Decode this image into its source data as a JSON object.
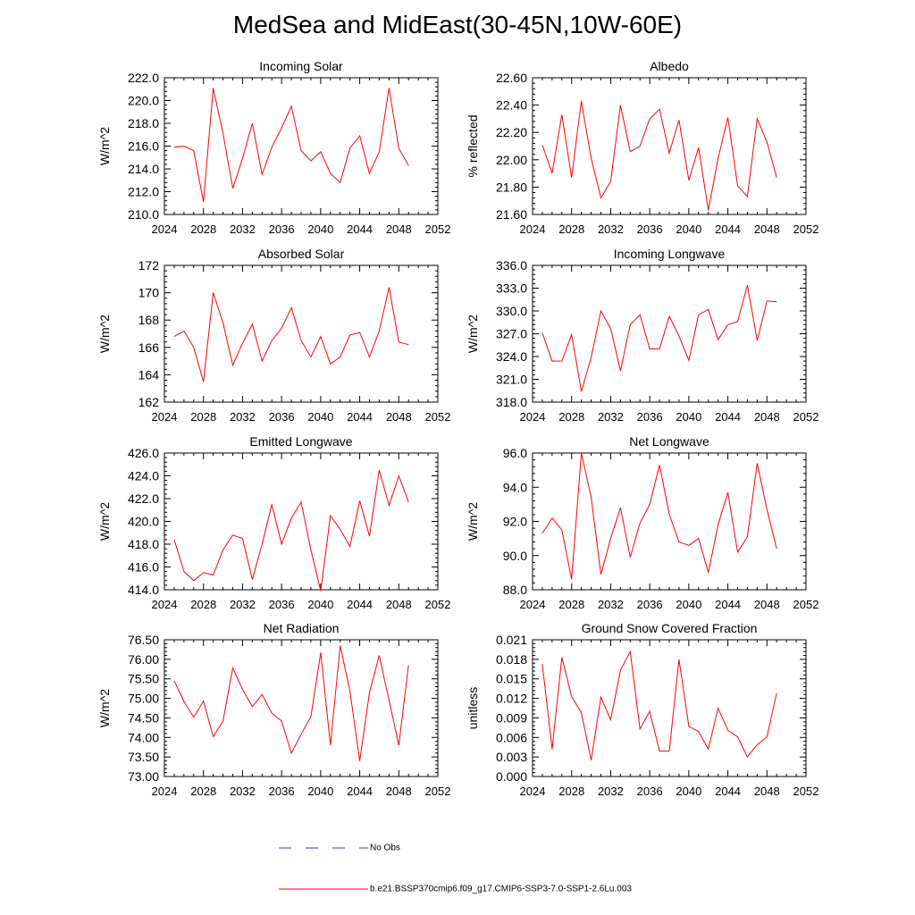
{
  "figure": {
    "title": "MedSea and MidEast(30-45N,10W-60E)"
  },
  "legend": {
    "obs_label": "No Obs",
    "obs_color": "#3333cc",
    "model_label": "b.e21.BSSP370cmip6.f09_g17.CMIP6-SSP3-7.0-SSP1-2.6Lu.003",
    "model_color": "#ff0000"
  },
  "chart_data": [
    {
      "type": "line",
      "title": "Incoming Solar",
      "ylabel": "W/m^2",
      "xlim": [
        2024,
        2052
      ],
      "xticks": [
        "2024",
        "2028",
        "2032",
        "2036",
        "2040",
        "2044",
        "2048",
        "2052"
      ],
      "ylim": [
        210,
        222
      ],
      "yticks": [
        "210.0",
        "212.0",
        "214.0",
        "216.0",
        "218.0",
        "220.0",
        "222.0"
      ],
      "grid": false,
      "x": [
        2025,
        2026,
        2027,
        2028,
        2029,
        2030,
        2031,
        2032,
        2033,
        2034,
        2035,
        2036,
        2037,
        2038,
        2039,
        2040,
        2041,
        2042,
        2043,
        2044,
        2045,
        2046,
        2047,
        2048,
        2049
      ],
      "series": [
        {
          "values": [
            215.9,
            216.0,
            215.6,
            211.1,
            221.1,
            217.1,
            212.3,
            214.9,
            218.0,
            213.5,
            215.9,
            217.6,
            219.5,
            215.6,
            214.7,
            215.5,
            213.6,
            212.8,
            215.8,
            216.9,
            213.6,
            215.5,
            221.1,
            215.8,
            214.3
          ]
        }
      ]
    },
    {
      "type": "line",
      "title": "Albedo",
      "ylabel": "% reflected",
      "xlim": [
        2024,
        2052
      ],
      "xticks": [
        "2024",
        "2028",
        "2032",
        "2036",
        "2040",
        "2044",
        "2048",
        "2052"
      ],
      "ylim": [
        21.6,
        22.6
      ],
      "yticks": [
        "21.60",
        "21.80",
        "22.00",
        "22.20",
        "22.40",
        "22.60"
      ],
      "grid": false,
      "x": [
        2025,
        2026,
        2027,
        2028,
        2029,
        2030,
        2031,
        2032,
        2033,
        2034,
        2035,
        2036,
        2037,
        2038,
        2039,
        2040,
        2041,
        2042,
        2043,
        2044,
        2045,
        2046,
        2047,
        2048,
        2049
      ],
      "series": [
        {
          "values": [
            22.11,
            21.9,
            22.33,
            21.87,
            22.43,
            22.01,
            21.72,
            21.84,
            22.4,
            22.06,
            22.1,
            22.3,
            22.37,
            22.05,
            22.29,
            21.85,
            22.09,
            21.63,
            22.01,
            22.31,
            21.81,
            21.73,
            22.3,
            22.13,
            21.87
          ]
        }
      ]
    },
    {
      "type": "line",
      "title": "Absorbed Solar",
      "ylabel": "W/m^2",
      "xlim": [
        2024,
        2052
      ],
      "xticks": [
        "2024",
        "2028",
        "2032",
        "2036",
        "2040",
        "2044",
        "2048",
        "2052"
      ],
      "ylim": [
        162,
        172
      ],
      "yticks": [
        "162",
        "164",
        "166",
        "168",
        "170",
        "172"
      ],
      "grid": false,
      "x": [
        2025,
        2026,
        2027,
        2028,
        2029,
        2030,
        2031,
        2032,
        2033,
        2034,
        2035,
        2036,
        2037,
        2038,
        2039,
        2040,
        2041,
        2042,
        2043,
        2044,
        2045,
        2046,
        2047,
        2048,
        2049
      ],
      "series": [
        {
          "values": [
            166.8,
            167.2,
            166.0,
            163.5,
            170.0,
            167.8,
            164.7,
            166.3,
            167.7,
            165.0,
            166.5,
            167.4,
            168.9,
            166.5,
            165.3,
            166.8,
            164.8,
            165.3,
            166.9,
            167.1,
            165.3,
            167.2,
            170.4,
            166.4,
            166.2
          ]
        }
      ]
    },
    {
      "type": "line",
      "title": "Incoming Longwave",
      "ylabel": "W/m^2",
      "xlim": [
        2024,
        2052
      ],
      "xticks": [
        "2024",
        "2028",
        "2032",
        "2036",
        "2040",
        "2044",
        "2048",
        "2052"
      ],
      "ylim": [
        318,
        336
      ],
      "yticks": [
        "318.0",
        "321.0",
        "324.0",
        "327.0",
        "330.0",
        "333.0",
        "336.0"
      ],
      "grid": false,
      "x": [
        2025,
        2026,
        2027,
        2028,
        2029,
        2030,
        2031,
        2032,
        2033,
        2034,
        2035,
        2036,
        2037,
        2038,
        2039,
        2040,
        2041,
        2042,
        2043,
        2044,
        2045,
        2046,
        2047,
        2048,
        2049
      ],
      "series": [
        {
          "values": [
            327.1,
            323.4,
            323.4,
            326.9,
            319.4,
            323.9,
            330.0,
            327.7,
            322.1,
            328.2,
            329.5,
            325.0,
            325.0,
            329.3,
            326.7,
            323.5,
            329.5,
            330.2,
            326.2,
            328.2,
            328.6,
            333.4,
            326.1,
            331.3,
            331.2
          ]
        }
      ]
    },
    {
      "type": "line",
      "title": "Emitted Longwave",
      "ylabel": "W/m^2",
      "xlim": [
        2024,
        2052
      ],
      "xticks": [
        "2024",
        "2028",
        "2032",
        "2036",
        "2040",
        "2044",
        "2048",
        "2052"
      ],
      "ylim": [
        414,
        426
      ],
      "yticks": [
        "414.0",
        "416.0",
        "418.0",
        "420.0",
        "422.0",
        "424.0",
        "426.0"
      ],
      "grid": false,
      "x": [
        2025,
        2026,
        2027,
        2028,
        2029,
        2030,
        2031,
        2032,
        2033,
        2034,
        2035,
        2036,
        2037,
        2038,
        2039,
        2040,
        2041,
        2042,
        2043,
        2044,
        2045,
        2046,
        2047,
        2048,
        2049
      ],
      "series": [
        {
          "values": [
            418.4,
            415.6,
            414.8,
            415.5,
            415.3,
            417.5,
            418.8,
            418.5,
            414.9,
            418.0,
            421.5,
            418.0,
            420.3,
            421.7,
            417.5,
            413.9,
            420.5,
            419.3,
            417.8,
            421.8,
            418.7,
            424.5,
            421.4,
            424.0,
            421.7
          ]
        }
      ]
    },
    {
      "type": "line",
      "title": "Net Longwave",
      "ylabel": "W/m^2",
      "xlim": [
        2024,
        2052
      ],
      "xticks": [
        "2024",
        "2028",
        "2032",
        "2036",
        "2040",
        "2044",
        "2048",
        "2052"
      ],
      "ylim": [
        88,
        96
      ],
      "yticks": [
        "88.0",
        "90.0",
        "92.0",
        "94.0",
        "96.0"
      ],
      "grid": false,
      "x": [
        2025,
        2026,
        2027,
        2028,
        2029,
        2030,
        2031,
        2032,
        2033,
        2034,
        2035,
        2036,
        2037,
        2038,
        2039,
        2040,
        2041,
        2042,
        2043,
        2044,
        2045,
        2046,
        2047,
        2048,
        2049
      ],
      "series": [
        {
          "values": [
            91.3,
            92.2,
            91.5,
            88.6,
            96.0,
            93.4,
            88.9,
            91.0,
            92.8,
            89.9,
            91.9,
            93.0,
            95.3,
            92.4,
            90.8,
            90.6,
            91.0,
            89.0,
            91.8,
            93.7,
            90.2,
            91.1,
            95.4,
            92.7,
            90.4
          ]
        }
      ]
    },
    {
      "type": "line",
      "title": "Net Radiation",
      "ylabel": "W/m^2",
      "xlim": [
        2024,
        2052
      ],
      "xticks": [
        "2024",
        "2028",
        "2032",
        "2036",
        "2040",
        "2044",
        "2048",
        "2052"
      ],
      "ylim": [
        73.0,
        76.5
      ],
      "yticks": [
        "73.00",
        "73.50",
        "74.00",
        "74.50",
        "75.00",
        "75.50",
        "76.00",
        "76.50"
      ],
      "grid": false,
      "x": [
        2025,
        2026,
        2027,
        2028,
        2029,
        2030,
        2031,
        2032,
        2033,
        2034,
        2035,
        2036,
        2037,
        2038,
        2039,
        2040,
        2041,
        2042,
        2043,
        2044,
        2045,
        2046,
        2047,
        2048,
        2049
      ],
      "series": [
        {
          "values": [
            75.45,
            74.92,
            74.52,
            74.93,
            74.02,
            74.42,
            75.78,
            75.23,
            74.79,
            75.1,
            74.62,
            74.42,
            73.6,
            74.08,
            74.53,
            76.17,
            73.8,
            76.35,
            75.19,
            73.4,
            75.15,
            76.1,
            74.95,
            73.8,
            75.85
          ]
        }
      ]
    },
    {
      "type": "line",
      "title": "Ground Snow Covered Fraction",
      "ylabel": "unitless",
      "xlim": [
        2024,
        2052
      ],
      "xticks": [
        "2024",
        "2028",
        "2032",
        "2036",
        "2040",
        "2044",
        "2048",
        "2052"
      ],
      "ylim": [
        0.0,
        0.021
      ],
      "yticks": [
        "0.000",
        "0.003",
        "0.006",
        "0.009",
        "0.012",
        "0.015",
        "0.018",
        "0.021"
      ],
      "grid": false,
      "x": [
        2025,
        2026,
        2027,
        2028,
        2029,
        2030,
        2031,
        2032,
        2033,
        2034,
        2035,
        2036,
        2037,
        2038,
        2039,
        2040,
        2041,
        2042,
        2043,
        2044,
        2045,
        2046,
        2047,
        2048,
        2049
      ],
      "series": [
        {
          "values": [
            0.0173,
            0.0042,
            0.0183,
            0.0123,
            0.0098,
            0.0025,
            0.0122,
            0.0087,
            0.0163,
            0.0192,
            0.0073,
            0.01,
            0.0039,
            0.0039,
            0.018,
            0.0077,
            0.0069,
            0.0042,
            0.0105,
            0.0071,
            0.0061,
            0.003,
            0.0049,
            0.0061,
            0.0128
          ]
        }
      ]
    }
  ]
}
